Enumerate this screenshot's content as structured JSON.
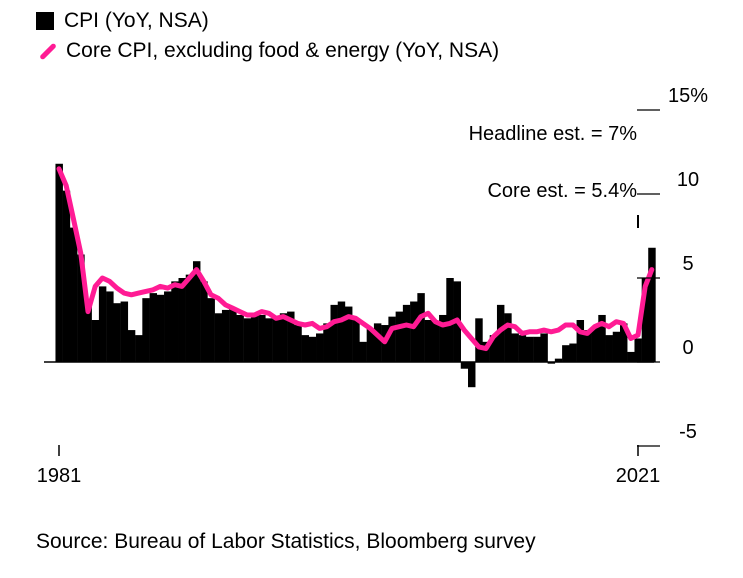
{
  "chart_data": {
    "type": "bar+line",
    "series": [
      {
        "name": "CPI (YoY, NSA)",
        "type": "bar",
        "color": "#000000",
        "x": [
          1981,
          1981.5,
          1982,
          1982.5,
          1983,
          1983.5,
          1984,
          1984.5,
          1985,
          1985.5,
          1986,
          1986.5,
          1987,
          1987.5,
          1988,
          1988.5,
          1989,
          1989.5,
          1990,
          1990.5,
          1991,
          1991.5,
          1992,
          1992.5,
          1993,
          1993.5,
          1994,
          1994.5,
          1995,
          1995.5,
          1996,
          1996.5,
          1997,
          1997.5,
          1998,
          1998.5,
          1999,
          1999.5,
          2000,
          2000.5,
          2001,
          2001.5,
          2002,
          2002.5,
          2003,
          2003.5,
          2004,
          2004.5,
          2005,
          2005.5,
          2006,
          2006.5,
          2007,
          2007.5,
          2008,
          2008.5,
          2009,
          2009.5,
          2010,
          2010.5,
          2011,
          2011.5,
          2012,
          2012.5,
          2013,
          2013.5,
          2014,
          2014.5,
          2015,
          2015.5,
          2016,
          2016.5,
          2017,
          2017.5,
          2018,
          2018.5,
          2019,
          2019.5,
          2020,
          2020.5,
          2021,
          2021.5,
          2021.95
        ],
        "values": [
          11.8,
          10.2,
          8.0,
          6.4,
          3.5,
          2.5,
          4.5,
          4.2,
          3.5,
          3.6,
          1.9,
          1.6,
          3.8,
          4.1,
          4.0,
          4.2,
          4.8,
          5.0,
          5.2,
          6.0,
          4.8,
          3.8,
          2.9,
          3.1,
          3.2,
          2.8,
          2.6,
          2.9,
          2.8,
          2.6,
          2.7,
          2.9,
          3.0,
          2.2,
          1.6,
          1.5,
          1.7,
          2.3,
          3.4,
          3.6,
          3.3,
          2.6,
          1.2,
          2.0,
          2.3,
          2.2,
          2.7,
          3.0,
          3.4,
          3.6,
          4.1,
          2.5,
          2.4,
          2.8,
          5.0,
          4.8,
          -0.4,
          -1.5,
          2.6,
          1.2,
          1.6,
          3.4,
          2.9,
          1.7,
          1.6,
          1.5,
          1.5,
          1.7,
          -0.1,
          0.2,
          1.0,
          1.1,
          2.5,
          1.9,
          2.1,
          2.8,
          1.6,
          1.8,
          2.3,
          0.6,
          1.4,
          5.0,
          6.8
        ]
      },
      {
        "name": "Core CPI, excluding food & energy (YoY, NSA)",
        "type": "line",
        "color": "#ff1b94",
        "x": [
          1981,
          1981.5,
          1982,
          1982.5,
          1983,
          1983.5,
          1984,
          1984.5,
          1985,
          1985.5,
          1986,
          1986.5,
          1987,
          1987.5,
          1988,
          1988.5,
          1989,
          1989.5,
          1990,
          1990.5,
          1991,
          1991.5,
          1992,
          1992.5,
          1993,
          1993.5,
          1994,
          1994.5,
          1995,
          1995.5,
          1996,
          1996.5,
          1997,
          1997.5,
          1998,
          1998.5,
          1999,
          1999.5,
          2000,
          2000.5,
          2001,
          2001.5,
          2002,
          2002.5,
          2003,
          2003.5,
          2004,
          2004.5,
          2005,
          2005.5,
          2006,
          2006.5,
          2007,
          2007.5,
          2008,
          2008.5,
          2009,
          2009.5,
          2010,
          2010.5,
          2011,
          2011.5,
          2012,
          2012.5,
          2013,
          2013.5,
          2014,
          2014.5,
          2015,
          2015.5,
          2016,
          2016.5,
          2017,
          2017.5,
          2018,
          2018.5,
          2019,
          2019.5,
          2020,
          2020.5,
          2021,
          2021.5,
          2021.95
        ],
        "values": [
          11.5,
          10.5,
          8.5,
          6.5,
          3.0,
          4.5,
          5.0,
          4.8,
          4.4,
          4.1,
          4.0,
          4.1,
          4.2,
          4.3,
          4.5,
          4.4,
          4.6,
          4.5,
          5.0,
          5.5,
          4.8,
          4.0,
          3.8,
          3.4,
          3.2,
          3.0,
          2.8,
          2.8,
          3.0,
          2.9,
          2.6,
          2.7,
          2.5,
          2.3,
          2.2,
          2.3,
          2.0,
          2.1,
          2.4,
          2.5,
          2.7,
          2.6,
          2.3,
          2.0,
          1.6,
          1.2,
          2.0,
          2.1,
          2.2,
          2.1,
          2.7,
          2.9,
          2.4,
          2.2,
          2.3,
          2.5,
          1.9,
          1.4,
          0.9,
          0.8,
          1.5,
          1.9,
          2.2,
          2.1,
          1.7,
          1.8,
          1.8,
          1.9,
          1.8,
          1.9,
          2.2,
          2.2,
          1.8,
          1.7,
          2.1,
          2.3,
          2.1,
          2.4,
          2.3,
          1.4,
          1.6,
          4.5,
          5.5
        ]
      }
    ],
    "x_tick_labels": [
      "1981",
      "2021"
    ],
    "y_tick_labels": [
      "15%",
      "10",
      "5",
      "0",
      "-5"
    ],
    "ylim": [
      -5,
      15
    ],
    "xlim": [
      1981,
      2021
    ],
    "annotations": [
      {
        "text": "Headline est. = 7%",
        "x": 2022,
        "y": 7
      },
      {
        "text": "Core est. = 5.4%",
        "x": 2022,
        "y": 5.4
      }
    ],
    "legend_position": "top-left",
    "grid": false
  },
  "source": "Source: Bureau of Labor Statistics, Bloomberg survey"
}
